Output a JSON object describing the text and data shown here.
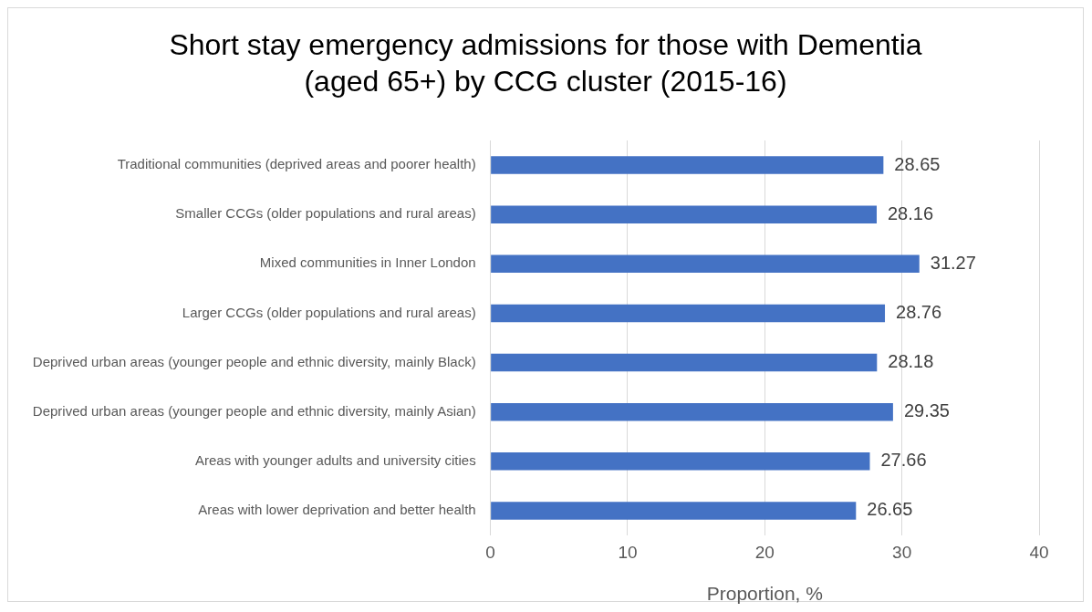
{
  "chart_data": {
    "type": "bar",
    "orientation": "horizontal",
    "title": "Short stay emergency admissions for those with Dementia (aged 65+) by CCG cluster (2015-16)",
    "xlabel": "Proportion, %",
    "categories": [
      "Traditional communities (deprived areas and poorer health)",
      "Smaller CCGs (older populations and rural areas)",
      "Mixed communities in Inner London",
      "Larger CCGs (older populations and rural areas)",
      "Deprived urban areas (younger people and ethnic diversity, mainly Black)",
      "Deprived urban areas (younger people and ethnic diversity, mainly Asian)",
      "Areas with younger adults and university cities",
      "Areas with lower deprivation and better health"
    ],
    "values": [
      28.65,
      28.16,
      31.27,
      28.76,
      28.18,
      29.35,
      27.66,
      26.65
    ],
    "color": "#4472c4",
    "xlim": [
      0,
      40
    ],
    "xticks": [
      0,
      10,
      20,
      30,
      40
    ],
    "grid": "x",
    "data_labels": true,
    "legend": false
  }
}
